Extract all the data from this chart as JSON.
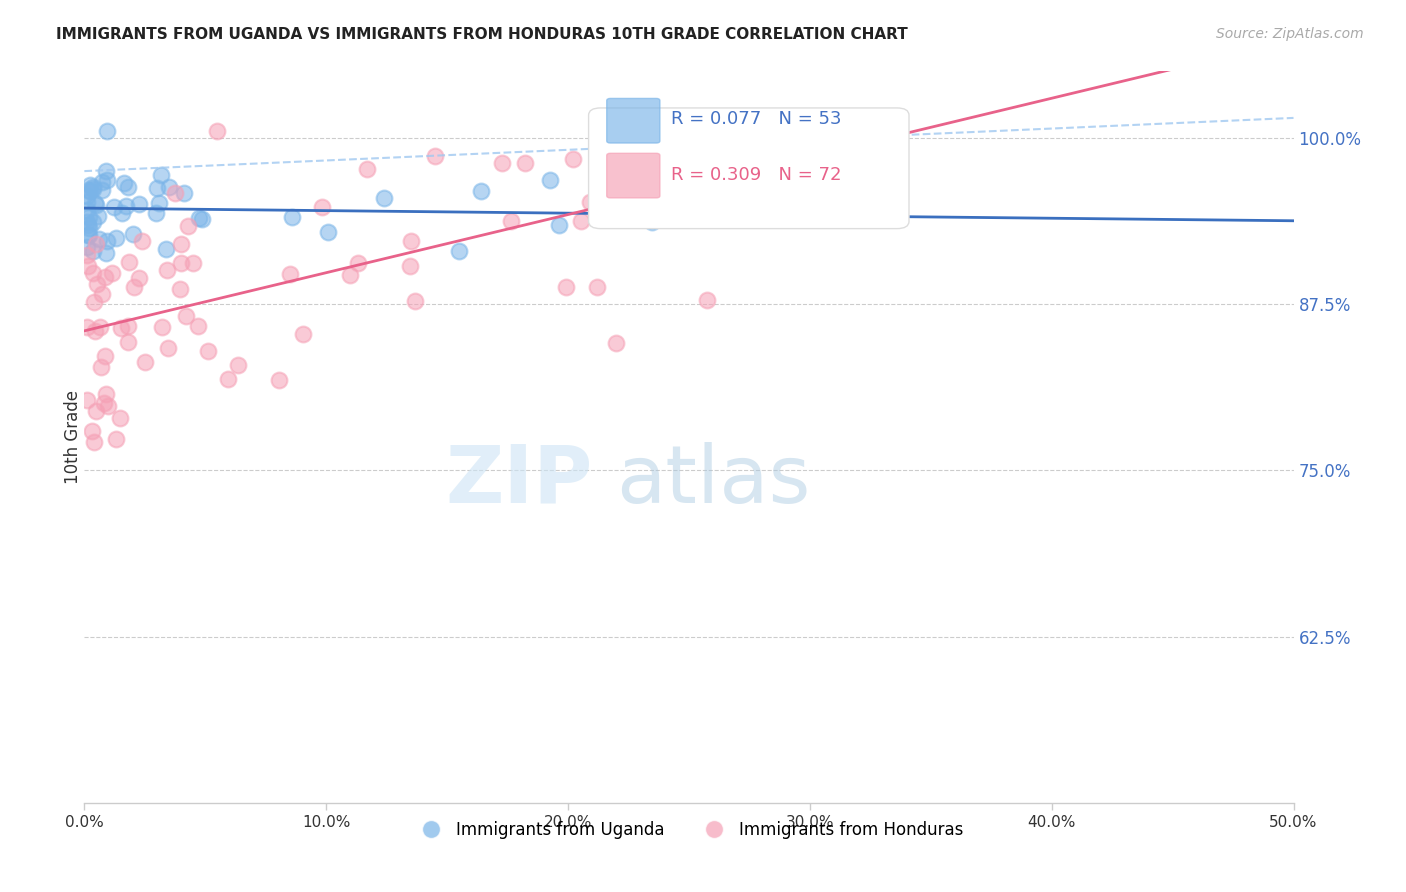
{
  "title": "IMMIGRANTS FROM UGANDA VS IMMIGRANTS FROM HONDURAS 10TH GRADE CORRELATION CHART",
  "source": "Source: ZipAtlas.com",
  "ylabel": "10th Grade",
  "y_ticks": [
    0.625,
    0.75,
    0.875,
    1.0
  ],
  "y_tick_labels": [
    "62.5%",
    "75.0%",
    "87.5%",
    "100.0%"
  ],
  "x_min": 0.0,
  "x_max": 0.5,
  "y_min": 0.5,
  "y_max": 1.05,
  "legend_R_uganda": "R = 0.077",
  "legend_N_uganda": "N = 53",
  "legend_R_honduras": "R = 0.309",
  "legend_N_honduras": "N = 72",
  "uganda_color": "#7ab4e8",
  "honduras_color": "#f5a0b5",
  "uganda_line_color": "#3a6fbf",
  "honduras_line_color": "#e8628a",
  "uganda_dash_color": "#a0c8f0"
}
